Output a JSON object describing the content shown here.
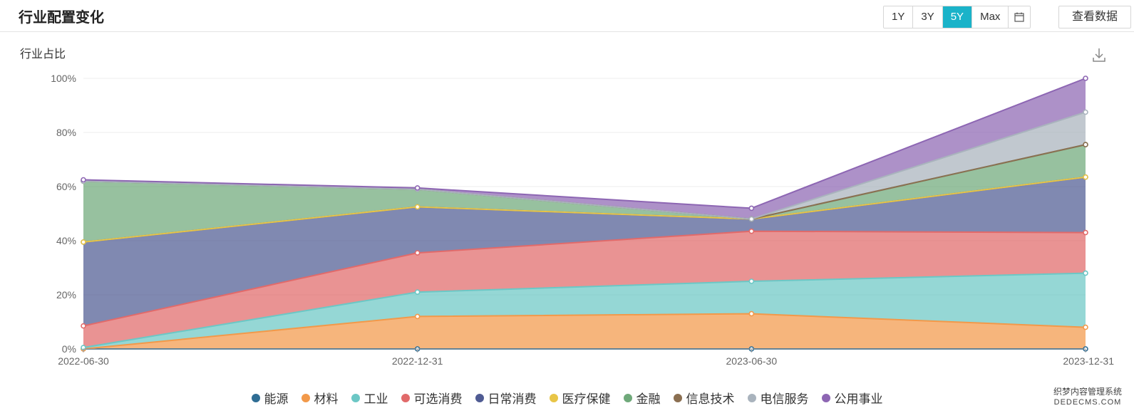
{
  "header": {
    "title": "行业配置变化",
    "ranges": [
      "1Y",
      "3Y",
      "5Y",
      "Max"
    ],
    "active_range": "5Y",
    "view_data_label": "查看数据",
    "calendar_icon": "calendar-icon"
  },
  "download_icon": "download-icon",
  "chart_data": {
    "type": "area",
    "stacked": true,
    "ylabel": "行业占比",
    "xlabel": "",
    "categories": [
      "2022-06-30",
      "2022-12-31",
      "2023-06-30",
      "2023-12-31"
    ],
    "ylim": [
      0,
      100
    ],
    "yticks": [
      "0%",
      "20%",
      "40%",
      "60%",
      "80%",
      "100%"
    ],
    "grid": true,
    "legend_position": "bottom",
    "series": [
      {
        "name": "能源",
        "color": "#2f6d94",
        "values": [
          0,
          0,
          0,
          0
        ]
      },
      {
        "name": "材料",
        "color": "#f2994a",
        "values": [
          0,
          12,
          13,
          8
        ]
      },
      {
        "name": "工业",
        "color": "#6cc7c5",
        "values": [
          0.5,
          9,
          12,
          20
        ]
      },
      {
        "name": "可选消费",
        "color": "#e16a6a",
        "values": [
          8,
          14.5,
          18.5,
          15
        ]
      },
      {
        "name": "日常消费",
        "color": "#4f5b93",
        "values": [
          31,
          17,
          4.5,
          20.5
        ]
      },
      {
        "name": "医疗保健",
        "color": "#e8c547",
        "values": [
          0,
          0,
          0,
          0
        ]
      },
      {
        "name": "金融",
        "color": "#6fa97a",
        "values": [
          22.5,
          6.5,
          0,
          12
        ]
      },
      {
        "name": "信息技术",
        "color": "#8b6f51",
        "values": [
          0,
          0,
          0,
          0
        ]
      },
      {
        "name": "电信服务",
        "color": "#a9b3bd",
        "values": [
          0,
          0,
          0,
          12
        ]
      },
      {
        "name": "公用事业",
        "color": "#8d66b3",
        "values": [
          0.5,
          0.5,
          4,
          12.5
        ]
      }
    ]
  },
  "watermark": {
    "line1": "织梦内容管理系统",
    "line2": "DEDECMS.COM"
  }
}
